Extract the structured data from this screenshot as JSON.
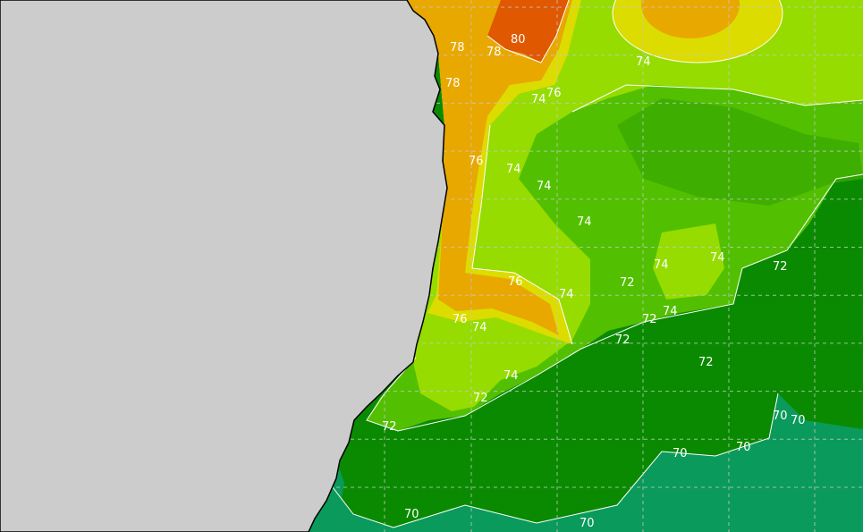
{
  "map": {
    "colors": {
      "land": "#cccccc",
      "coastline": "#000000",
      "contour_line": "#ffffff",
      "t70_teal": "#0a9a5c",
      "t72_dark_green": "#0a8a00",
      "t73_green": "#3aaa00",
      "t74_green": "#52c000",
      "t75_yellow_green": "#96dc00",
      "t76_yellow": "#dcdc00",
      "t77_orange": "#e8a800",
      "t80_red_orange": "#e05800"
    },
    "contour_labels": [
      "80",
      "78",
      "78",
      "76",
      "74",
      "74",
      "76",
      "74",
      "74",
      "74",
      "76",
      "74",
      "72",
      "74",
      "74",
      "72",
      "76",
      "74",
      "72",
      "74",
      "72",
      "72",
      "74",
      "72",
      "72",
      "70",
      "70",
      "70",
      "70",
      "70",
      "70",
      "78"
    ]
  }
}
